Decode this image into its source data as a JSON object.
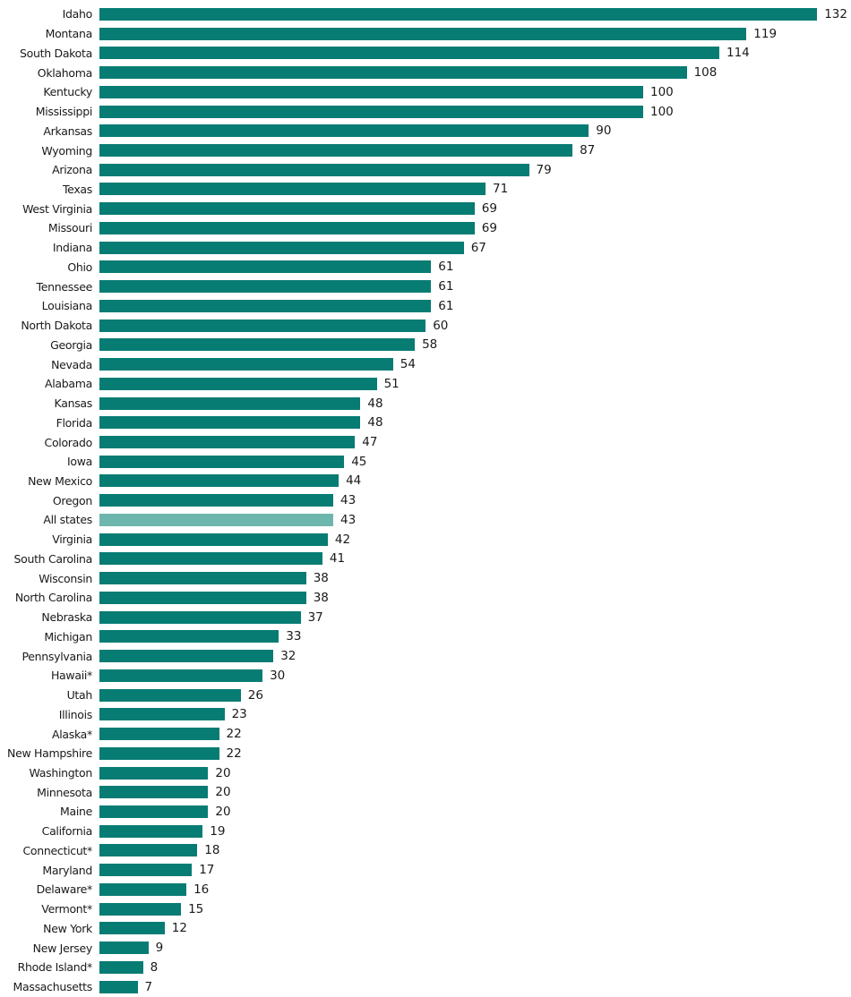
{
  "chart_data": {
    "type": "bar",
    "orientation": "horizontal",
    "title": "",
    "xlabel": "",
    "ylabel": "",
    "xlim": [
      0,
      132
    ],
    "grid": false,
    "legend": "none",
    "bar_color": "#077c73",
    "highlight_color": "#6db6ae",
    "highlight_category": "All states",
    "categories": [
      "Idaho",
      "Montana",
      "South Dakota",
      "Oklahoma",
      "Kentucky",
      "Mississippi",
      "Arkansas",
      "Wyoming",
      "Arizona",
      "Texas",
      "West Virginia",
      "Missouri",
      "Indiana",
      "Ohio",
      "Tennessee",
      "Louisiana",
      "North Dakota",
      "Georgia",
      "Nevada",
      "Alabama",
      "Kansas",
      "Florida",
      "Colorado",
      "Iowa",
      "New Mexico",
      "Oregon",
      "All states",
      "Virginia",
      "South Carolina",
      "Wisconsin",
      "North Carolina",
      "Nebraska",
      "Michigan",
      "Pennsylvania",
      "Hawaii*",
      "Utah",
      "Illinois",
      "Alaska*",
      "New Hampshire",
      "Washington",
      "Minnesota",
      "Maine",
      "California",
      "Connecticut*",
      "Maryland",
      "Delaware*",
      "Vermont*",
      "New York",
      "New Jersey",
      "Rhode Island*",
      "Massachusetts"
    ],
    "values": [
      132,
      119,
      114,
      108,
      100,
      100,
      90,
      87,
      79,
      71,
      69,
      69,
      67,
      61,
      61,
      61,
      60,
      58,
      54,
      51,
      48,
      48,
      47,
      45,
      44,
      43,
      43,
      42,
      41,
      38,
      38,
      37,
      33,
      32,
      30,
      26,
      23,
      22,
      22,
      20,
      20,
      20,
      19,
      18,
      17,
      16,
      15,
      12,
      9,
      8,
      7
    ]
  }
}
